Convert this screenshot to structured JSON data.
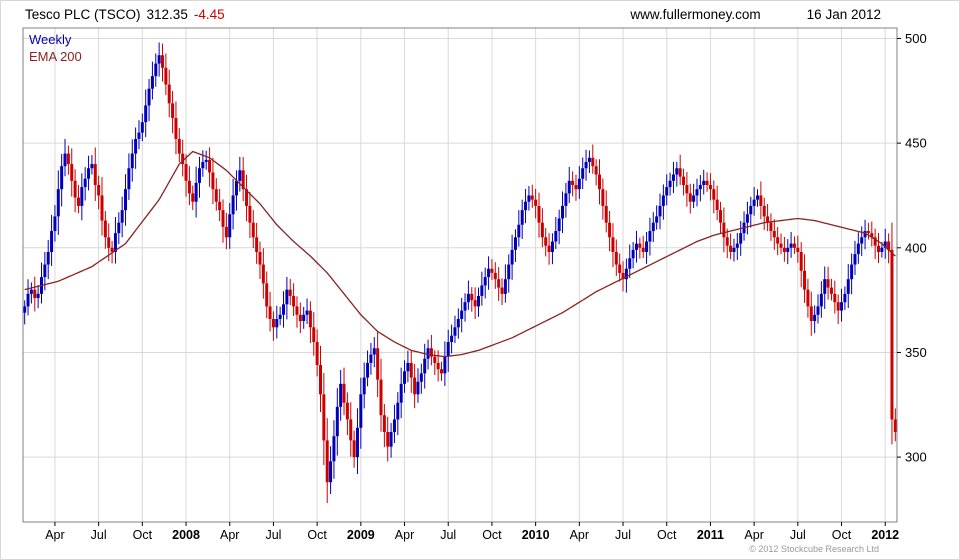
{
  "header": {
    "instrument": "Tesco PLC (TSCO)",
    "price": "312.35",
    "change": "-4.45",
    "website": "www.fullermoney.com",
    "date": "16 Jan 2012"
  },
  "legend": {
    "frequency": "Weekly",
    "overlay": "EMA 200"
  },
  "footer": {
    "copyright": "© 2012 Stockcube Research Ltd"
  },
  "colors": {
    "up": "#0000bb",
    "down": "#cc0000",
    "ema": "#8b2222",
    "grid": "#d9d9d9",
    "plot_border": "#808080",
    "change_negative": "#cc0000"
  },
  "chart_data": {
    "type": "candlestick",
    "title": "Tesco PLC (TSCO)",
    "frequency": "weekly",
    "overlay": "EMA 200",
    "x_range": [
      "Feb 2007",
      "16 Jan 2012"
    ],
    "ylim": [
      269,
      505
    ],
    "yticks": [
      300,
      350,
      400,
      450,
      500
    ],
    "xticks": [
      {
        "idx": 9,
        "label": "Apr"
      },
      {
        "idx": 22,
        "label": "Jul"
      },
      {
        "idx": 35,
        "label": "Oct"
      },
      {
        "idx": 48,
        "label": "2008"
      },
      {
        "idx": 61,
        "label": "Apr"
      },
      {
        "idx": 74,
        "label": "Jul"
      },
      {
        "idx": 87,
        "label": "Oct"
      },
      {
        "idx": 100,
        "label": "2009"
      },
      {
        "idx": 113,
        "label": "Apr"
      },
      {
        "idx": 126,
        "label": "Jul"
      },
      {
        "idx": 139,
        "label": "Oct"
      },
      {
        "idx": 152,
        "label": "2010"
      },
      {
        "idx": 165,
        "label": "Apr"
      },
      {
        "idx": 178,
        "label": "Jul"
      },
      {
        "idx": 191,
        "label": "Oct"
      },
      {
        "idx": 204,
        "label": "2011"
      },
      {
        "idx": 217,
        "label": "Apr"
      },
      {
        "idx": 230,
        "label": "Jul"
      },
      {
        "idx": 243,
        "label": "Oct"
      },
      {
        "idx": 256,
        "label": "2012"
      }
    ],
    "weekly_closes": [
      372,
      378,
      380,
      376,
      378,
      386,
      392,
      398,
      408,
      415,
      428,
      439,
      445,
      440,
      432,
      424,
      420,
      429,
      433,
      438,
      440,
      430,
      425,
      413,
      405,
      400,
      398,
      407,
      412,
      418,
      428,
      438,
      445,
      452,
      455,
      460,
      468,
      476,
      482,
      488,
      492,
      486,
      478,
      469,
      462,
      452,
      445,
      440,
      432,
      426,
      422,
      431,
      438,
      441,
      442,
      436,
      428,
      422,
      418,
      410,
      405,
      416,
      425,
      432,
      437,
      428,
      420,
      412,
      405,
      398,
      392,
      383,
      372,
      366,
      362,
      366,
      368,
      373,
      380,
      377,
      372,
      368,
      365,
      368,
      370,
      362,
      355,
      344,
      330,
      308,
      288,
      298,
      310,
      324,
      335,
      326,
      318,
      308,
      300,
      314,
      330,
      338,
      345,
      349,
      352,
      337,
      320,
      312,
      305,
      312,
      318,
      326,
      335,
      341,
      345,
      338,
      330,
      336,
      340,
      347,
      352,
      348,
      345,
      342,
      340,
      348,
      355,
      358,
      362,
      366,
      370,
      374,
      378,
      375,
      372,
      377,
      382,
      386,
      390,
      388,
      385,
      381,
      378,
      385,
      392,
      399,
      405,
      411,
      418,
      422,
      425,
      423,
      420,
      412,
      405,
      401,
      398,
      403,
      408,
      414,
      420,
      426,
      432,
      430,
      428,
      433,
      438,
      441,
      443,
      439,
      435,
      428,
      420,
      412,
      405,
      398,
      392,
      388,
      385,
      390,
      395,
      399,
      402,
      400,
      398,
      403,
      408,
      412,
      415,
      420,
      425,
      429,
      432,
      435,
      438,
      434,
      430,
      426,
      422,
      425,
      428,
      430,
      432,
      430,
      428,
      423,
      418,
      412,
      405,
      401,
      398,
      400,
      402,
      407,
      412,
      416,
      420,
      423,
      425,
      420,
      415,
      412,
      408,
      405,
      402,
      400,
      398,
      400,
      402,
      400,
      398,
      389,
      380,
      372,
      365,
      368,
      372,
      378,
      385,
      381,
      378,
      374,
      370,
      374,
      378,
      385,
      392,
      397,
      402,
      405,
      408,
      407,
      405,
      401,
      398,
      400,
      403,
      399,
      318,
      312
    ],
    "ema200_keyframes": [
      [
        0,
        380
      ],
      [
        10,
        384
      ],
      [
        20,
        391
      ],
      [
        30,
        402
      ],
      [
        40,
        423
      ],
      [
        46,
        440
      ],
      [
        50,
        446
      ],
      [
        55,
        443
      ],
      [
        60,
        437
      ],
      [
        65,
        429
      ],
      [
        70,
        421
      ],
      [
        75,
        411
      ],
      [
        80,
        403
      ],
      [
        85,
        396
      ],
      [
        90,
        388
      ],
      [
        95,
        378
      ],
      [
        100,
        368
      ],
      [
        105,
        360
      ],
      [
        110,
        355
      ],
      [
        115,
        351
      ],
      [
        120,
        349
      ],
      [
        125,
        348
      ],
      [
        130,
        349
      ],
      [
        135,
        351
      ],
      [
        140,
        354
      ],
      [
        145,
        357
      ],
      [
        150,
        361
      ],
      [
        155,
        365
      ],
      [
        160,
        369
      ],
      [
        165,
        374
      ],
      [
        170,
        379
      ],
      [
        175,
        383
      ],
      [
        180,
        387
      ],
      [
        185,
        391
      ],
      [
        190,
        395
      ],
      [
        195,
        399
      ],
      [
        200,
        403
      ],
      [
        205,
        406
      ],
      [
        210,
        408
      ],
      [
        215,
        410
      ],
      [
        220,
        412
      ],
      [
        225,
        413
      ],
      [
        230,
        414
      ],
      [
        235,
        413
      ],
      [
        240,
        411
      ],
      [
        245,
        409
      ],
      [
        250,
        407
      ],
      [
        255,
        402
      ],
      [
        259,
        396
      ]
    ],
    "last_price": 312.35,
    "last_change": -4.45
  }
}
